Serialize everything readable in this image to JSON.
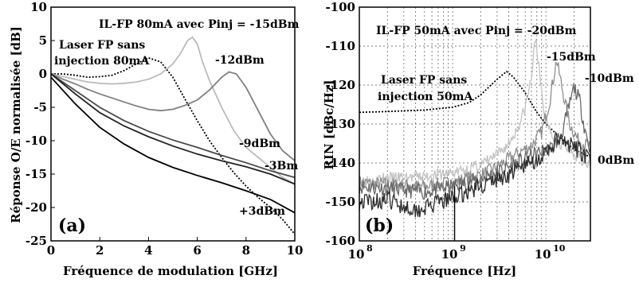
{
  "chart_data": [
    {
      "type": "line",
      "panel_label": "(a)",
      "title": "IL-FP 80mA avec Pinj = -15dBm",
      "xlabel": "Fréquence de modulation [GHz]",
      "ylabel": "Réponse O/E normalisée [dB]",
      "xlim": [
        0,
        10
      ],
      "ylim": [
        -25,
        10
      ],
      "xticks": [
        "0",
        "2",
        "4",
        "6",
        "8",
        "10"
      ],
      "yticks": [
        "10",
        "5",
        "0",
        "-5",
        "-10",
        "-15",
        "-20",
        "-25"
      ],
      "grid": false,
      "annotations": [
        "Laser FP sans",
        "injection 80mA",
        "-12dBm",
        "-9dBm",
        "-3Bm",
        "+3dBm"
      ],
      "series": [
        {
          "color": "#000000",
          "dash": "2,2",
          "x": [
            0,
            0.5,
            1,
            1.5,
            2,
            2.5,
            3,
            3.5,
            4,
            4.5,
            5,
            5.5,
            6,
            6.5,
            7,
            7.5,
            8,
            8.5,
            9,
            9.5,
            10
          ],
          "y": [
            0,
            0,
            -0.2,
            -0.5,
            -0.4,
            -0.2,
            0.5,
            1.5,
            2.4,
            1.8,
            -0.5,
            -3.8,
            -7,
            -10,
            -12.5,
            -14.8,
            -16.8,
            -18.5,
            -20,
            -21.8,
            -24
          ]
        },
        {
          "color": "#bbbbbb",
          "x": [
            0,
            0.5,
            1,
            1.5,
            2,
            2.5,
            3,
            3.5,
            4,
            4.5,
            5,
            5.3,
            5.6,
            5.8,
            6,
            6.2,
            6.5,
            7,
            7.5,
            8,
            8.5,
            9,
            9.5,
            10
          ],
          "y": [
            0,
            -0.4,
            -0.8,
            -1.2,
            -1.4,
            -1.5,
            -1.4,
            -1.2,
            -0.8,
            0,
            1.5,
            3,
            5,
            5.5,
            4.5,
            2,
            -1,
            -5,
            -8.5,
            -11,
            -12.5,
            -14,
            -15.5,
            -16.5
          ]
        },
        {
          "color": "#808080",
          "x": [
            0,
            0.5,
            1,
            1.5,
            2,
            2.5,
            3,
            3.5,
            4,
            4.5,
            5,
            5.5,
            6,
            6.5,
            7,
            7.3,
            7.6,
            8,
            8.5,
            9,
            9.5,
            10
          ],
          "y": [
            0,
            -0.8,
            -1.5,
            -2.3,
            -3,
            -3.6,
            -4.2,
            -4.8,
            -5.3,
            -5.5,
            -5.3,
            -4.7,
            -3.9,
            -2.4,
            -0.5,
            0.3,
            0,
            -2,
            -5.5,
            -9,
            -11.5,
            -13
          ]
        },
        {
          "color": "#4a4a4a",
          "x": [
            0,
            1,
            2,
            3,
            4,
            5,
            6,
            7,
            8,
            9,
            10
          ],
          "y": [
            0,
            -2.5,
            -5,
            -7,
            -8.6,
            -9.9,
            -11,
            -12.2,
            -13.3,
            -14.5,
            -15.5
          ]
        },
        {
          "color": "#222222",
          "x": [
            0,
            1,
            2,
            3,
            4,
            5,
            6,
            7,
            8,
            9,
            10
          ],
          "y": [
            0,
            -3,
            -5.8,
            -7.8,
            -9.4,
            -10.8,
            -12,
            -13,
            -13.9,
            -15,
            -16.5
          ]
        },
        {
          "color": "#000000",
          "x": [
            0,
            1,
            2,
            3,
            4,
            5,
            6,
            7,
            8,
            9,
            10
          ],
          "y": [
            -0.5,
            -4.5,
            -8,
            -10.5,
            -12.5,
            -14,
            -15.2,
            -16.3,
            -17.5,
            -18.8,
            -20.8
          ]
        }
      ]
    },
    {
      "type": "line",
      "panel_label": "(b)",
      "title": "IL-FP 50mA avec Pinj = -20dBm",
      "xlabel": "Fréquence [Hz]",
      "ylabel": "RIN [dBc/Hz]",
      "xscale": "log",
      "xlim": [
        100000000.0,
        30000000000.0
      ],
      "ylim": [
        -160,
        -100
      ],
      "xtick_values": [
        100000000.0,
        1000000000.0,
        10000000000.0
      ],
      "ytick_values": [
        -100,
        -110,
        -120,
        -130,
        -140,
        -150,
        -160
      ],
      "ytick_labels": [
        "-100",
        "-110",
        "-120",
        "-130",
        "-140",
        "-150",
        "-160"
      ],
      "grid": true,
      "annotations": [
        "Laser FP sans",
        "injection 50mA",
        "-15dBm",
        "-10dBm",
        "0dBm"
      ],
      "series": [
        {
          "color": "#000000",
          "dash": "2,2",
          "x": [
            100000000.0,
            200000000.0,
            500000000.0,
            1000000000.0,
            1500000000.0,
            2000000000.0,
            3000000000.0,
            3800000000.0,
            4500000000.0,
            6000000000.0,
            8000000000.0,
            10000000000.0,
            15000000000.0,
            20000000000.0,
            30000000000.0
          ],
          "y": [
            -127,
            -126.8,
            -126.4,
            -125.7,
            -124.5,
            -122.5,
            -118.5,
            -116.5,
            -118,
            -122,
            -127,
            -130,
            -134,
            -136.5,
            -138.5
          ]
        },
        {
          "color": "#c2c2c2",
          "noise": 1.6,
          "seed": 3,
          "x": [
            100000000.0,
            200000000.0,
            500000000.0,
            1000000000.0,
            1500000000.0,
            2000000000.0,
            3000000000.0,
            4000000000.0,
            5000000000.0,
            6000000000.0,
            7000000000.0,
            7800000000.0,
            8500000000.0,
            9500000000.0,
            12000000000.0,
            16000000000.0,
            20000000000.0,
            30000000000.0
          ],
          "y": [
            -144.5,
            -144,
            -143.5,
            -142.5,
            -141.5,
            -140.5,
            -138,
            -135,
            -131,
            -126,
            -118,
            -107,
            -117,
            -127,
            -133,
            -136,
            -138,
            -140
          ]
        },
        {
          "color": "#8e8e8e",
          "noise": 1.8,
          "seed": 7,
          "x": [
            100000000.0,
            200000000.0,
            500000000.0,
            1000000000.0,
            2000000000.0,
            3000000000.0,
            4000000000.0,
            5000000000.0,
            7000000000.0,
            9000000000.0,
            11000000000.0,
            13000000000.0,
            15000000000.0,
            18000000000.0,
            22000000000.0,
            30000000000.0
          ],
          "y": [
            -145,
            -145.5,
            -146,
            -145,
            -143,
            -141,
            -139,
            -137.5,
            -135.5,
            -132,
            -124,
            -113.5,
            -121,
            -130,
            -134,
            -136
          ]
        },
        {
          "color": "#6a6a6a",
          "noise": 2.0,
          "seed": 11,
          "x": [
            100000000.0,
            200000000.0,
            500000000.0,
            1000000000.0,
            2000000000.0,
            4000000000.0,
            6000000000.0,
            9000000000.0,
            12000000000.0,
            15000000000.0,
            18000000000.0,
            20000000000.0,
            23000000000.0,
            26000000000.0,
            30000000000.0
          ],
          "y": [
            -146,
            -146.5,
            -147.5,
            -146,
            -144,
            -141,
            -139,
            -137,
            -136,
            -132,
            -125,
            -120.5,
            -124,
            -131,
            -137
          ]
        },
        {
          "color": "#2e2e2e",
          "noise": 2.2,
          "seed": 19,
          "x": [
            100000000.0,
            200000000.0,
            400000000.0,
            600000000.0,
            1000000000.0,
            2000000000.0,
            4000000000.0,
            6000000000.0,
            10000000000.0,
            13000000000.0,
            16000000000.0,
            20000000000.0,
            25000000000.0,
            30000000000.0
          ],
          "y": [
            -150,
            -149.5,
            -152,
            -151,
            -149,
            -146,
            -143,
            -140.5,
            -138,
            -134,
            -135,
            -136,
            -137.5,
            -140
          ]
        }
      ]
    }
  ]
}
